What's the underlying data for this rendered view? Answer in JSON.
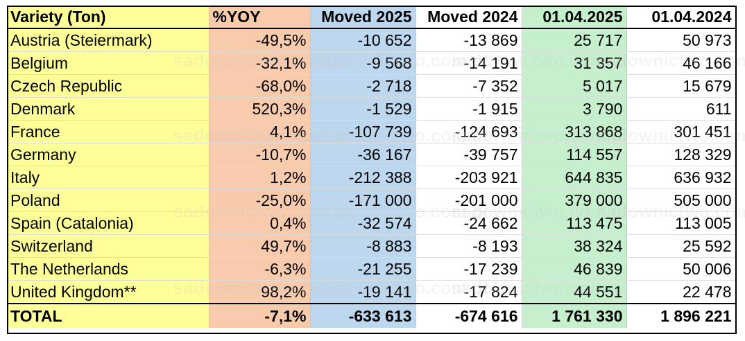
{
  "table": {
    "headers": [
      "Variety (Ton)",
      "%YOY",
      "Moved 2025",
      "Moved 2024",
      "01.04.2025",
      "01.04.2024"
    ],
    "rows": [
      [
        "Austria (Steiermark)",
        "-49,5%",
        "-10 652",
        "-13 869",
        "25 717",
        "50 973"
      ],
      [
        "Belgium",
        "-32,1%",
        "-9 568",
        "-14 191",
        "31 357",
        "46 166"
      ],
      [
        "Czech Republic",
        "-68,0%",
        "-2 718",
        "-7 352",
        "5 017",
        "15 679"
      ],
      [
        "Denmark",
        "520,3%",
        "-1 529",
        "-1 915",
        "3 790",
        "611"
      ],
      [
        "France",
        "4,1%",
        "-107 739",
        "-124 693",
        "313 868",
        "301 451"
      ],
      [
        "Germany",
        "-10,7%",
        "-36 167",
        "-39 757",
        "114 557",
        "128 329"
      ],
      [
        "Italy",
        "1,2%",
        "-212 388",
        "-203 921",
        "644 835",
        "636 932"
      ],
      [
        "Poland",
        "-25,0%",
        "-171 000",
        "-201 000",
        "379 000",
        "505 000"
      ],
      [
        "Spain (Catalonia)",
        "0,4%",
        "-32 574",
        "-24 662",
        "113 475",
        "113 005"
      ],
      [
        "Switzerland",
        "49,7%",
        "-8 883",
        "-8 193",
        "38 324",
        "25 592"
      ],
      [
        "The Netherlands",
        "-6,3%",
        "-21 255",
        "-17 239",
        "46 839",
        "50 006"
      ],
      [
        "United Kingdom**",
        "98,2%",
        "-19 141",
        "-17 824",
        "44 551",
        "22 478"
      ]
    ],
    "total": [
      "TOTAL",
      "-7,1%",
      "-633 613",
      "-674 616",
      "1 761 330",
      "1 896 221"
    ]
  },
  "watermark": "sadownictwo.com.pl",
  "colors": {
    "variety": "#ffff99",
    "yoy": "#f8cbad",
    "moved_2025": "#bdd7ee",
    "date_2025": "#c6efce"
  }
}
